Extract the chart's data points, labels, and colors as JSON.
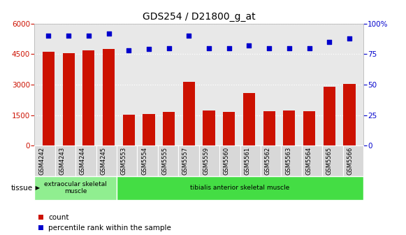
{
  "title": "GDS254 / D21800_g_at",
  "categories": [
    "GSM4242",
    "GSM4243",
    "GSM4244",
    "GSM4245",
    "GSM5553",
    "GSM5554",
    "GSM5555",
    "GSM5557",
    "GSM5559",
    "GSM5560",
    "GSM5561",
    "GSM5562",
    "GSM5563",
    "GSM5564",
    "GSM5565",
    "GSM5566"
  ],
  "counts": [
    4600,
    4550,
    4680,
    4750,
    1530,
    1560,
    1650,
    3130,
    1720,
    1650,
    2580,
    1700,
    1740,
    1700,
    2900,
    3020
  ],
  "percentiles": [
    90,
    90,
    90,
    92,
    78,
    79,
    80,
    90,
    80,
    80,
    82,
    80,
    80,
    80,
    85,
    88
  ],
  "bar_color": "#cc1100",
  "dot_color": "#0000cc",
  "ylim_left": [
    0,
    6000
  ],
  "ylim_right": [
    0,
    100
  ],
  "yticks_left": [
    0,
    1500,
    3000,
    4500,
    6000
  ],
  "yticks_right": [
    0,
    25,
    50,
    75,
    100
  ],
  "tissue_groups": [
    {
      "label": "extraocular skeletal\nmuscle",
      "start": 0,
      "end": 4,
      "color": "#90ee90"
    },
    {
      "label": "tibialis anterior skeletal muscle",
      "start": 4,
      "end": 16,
      "color": "#44dd44"
    }
  ],
  "tissue_label": "tissue",
  "legend_count_label": "count",
  "legend_percentile_label": "percentile rank within the sample",
  "background_color": "#ffffff",
  "plot_bg_color": "#e8e8e8",
  "title_fontsize": 10,
  "tick_fontsize": 7.5
}
